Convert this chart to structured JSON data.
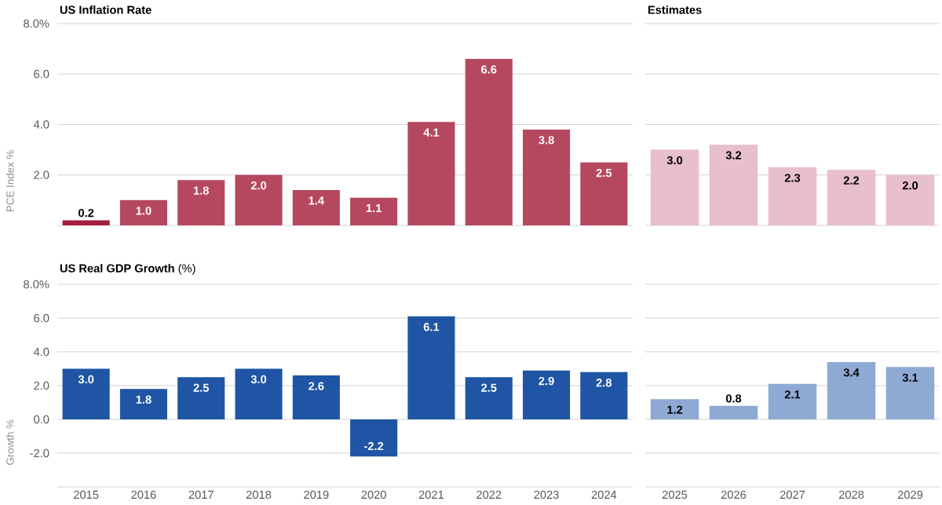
{
  "chart_data": [
    {
      "type": "bar",
      "title": "US Inflation Rate",
      "ylabel": "PCE Index %",
      "categories": [
        "2015",
        "2016",
        "2017",
        "2018",
        "2019",
        "2020",
        "2021",
        "2022",
        "2023",
        "2024"
      ],
      "values": [
        0.2,
        1.0,
        1.8,
        2.0,
        1.4,
        1.1,
        4.1,
        6.6,
        3.8,
        2.5
      ],
      "value_labels": [
        "0.2",
        "1.0",
        "1.8",
        "2.0",
        "1.4",
        "1.1",
        "4.1",
        "6.6",
        "3.8",
        "2.5"
      ],
      "colors": [
        "#a3203c",
        "#b5485f",
        "#b5485f",
        "#b5485f",
        "#b5485f",
        "#b5485f",
        "#b5485f",
        "#b5485f",
        "#b5485f",
        "#b5485f"
      ],
      "ylim": [
        0,
        8
      ],
      "yticks": [
        {
          "value": 0,
          "label": null
        },
        {
          "value": 2,
          "label": "2.0"
        },
        {
          "value": 4,
          "label": "4.0"
        },
        {
          "value": 6,
          "label": "6.0"
        },
        {
          "value": 8,
          "label": "8.0%"
        }
      ],
      "grid": "y",
      "tick_labels": "y"
    },
    {
      "type": "bar",
      "title": "Estimates",
      "categories": [
        "2025",
        "2026",
        "2027",
        "2028",
        "2029"
      ],
      "values": [
        3.0,
        3.2,
        2.3,
        2.2,
        2.0
      ],
      "value_labels": [
        "3.0",
        "3.2",
        "2.3",
        "2.2",
        "2.0"
      ],
      "color": "#e8bfcc",
      "ylim": [
        0,
        8
      ],
      "yticks": [
        0,
        2,
        4,
        6,
        8
      ],
      "grid": "y",
      "tick_labels": false
    },
    {
      "type": "bar",
      "title": "**US Real GDP Growth** (%)",
      "ylabel": "Growth %",
      "categories": [
        "2015",
        "2016",
        "2017",
        "2018",
        "2019",
        "2020",
        "2021",
        "2022",
        "2023",
        "2024"
      ],
      "values": [
        3.0,
        1.8,
        2.5,
        3.0,
        2.6,
        -2.2,
        6.1,
        2.5,
        2.9,
        2.8
      ],
      "value_labels": [
        "3.0",
        "1.8",
        "2.5",
        "3.0",
        "2.6",
        "-2.2",
        "6.1",
        "2.5",
        "2.9",
        "2.8"
      ],
      "color": "#1f55a4",
      "ylim": [
        -4,
        8
      ],
      "yticks": [
        {
          "value": -4,
          "label": null
        },
        {
          "value": -2,
          "label": "-2.0"
        },
        {
          "value": 0,
          "label": "0.0"
        },
        {
          "value": 2,
          "label": "2.0"
        },
        {
          "value": 4,
          "label": "4.0"
        },
        {
          "value": 6,
          "label": "6.0"
        },
        {
          "value": 8,
          "label": "8.0%"
        }
      ],
      "grid": "y"
    },
    {
      "type": "bar",
      "categories": [
        "2025",
        "2026",
        "2027",
        "2028",
        "2029"
      ],
      "values": [
        1.2,
        0.8,
        2.1,
        3.4,
        3.1
      ],
      "value_labels": [
        "1.2",
        "0.8",
        "2.1",
        "3.4",
        "3.1"
      ],
      "color": "#8eaad4",
      "ylim": [
        -4,
        8
      ],
      "yticks": [
        -4,
        -2,
        0,
        2,
        4,
        6,
        8
      ],
      "grid": "y",
      "tick_labels": "x"
    }
  ]
}
